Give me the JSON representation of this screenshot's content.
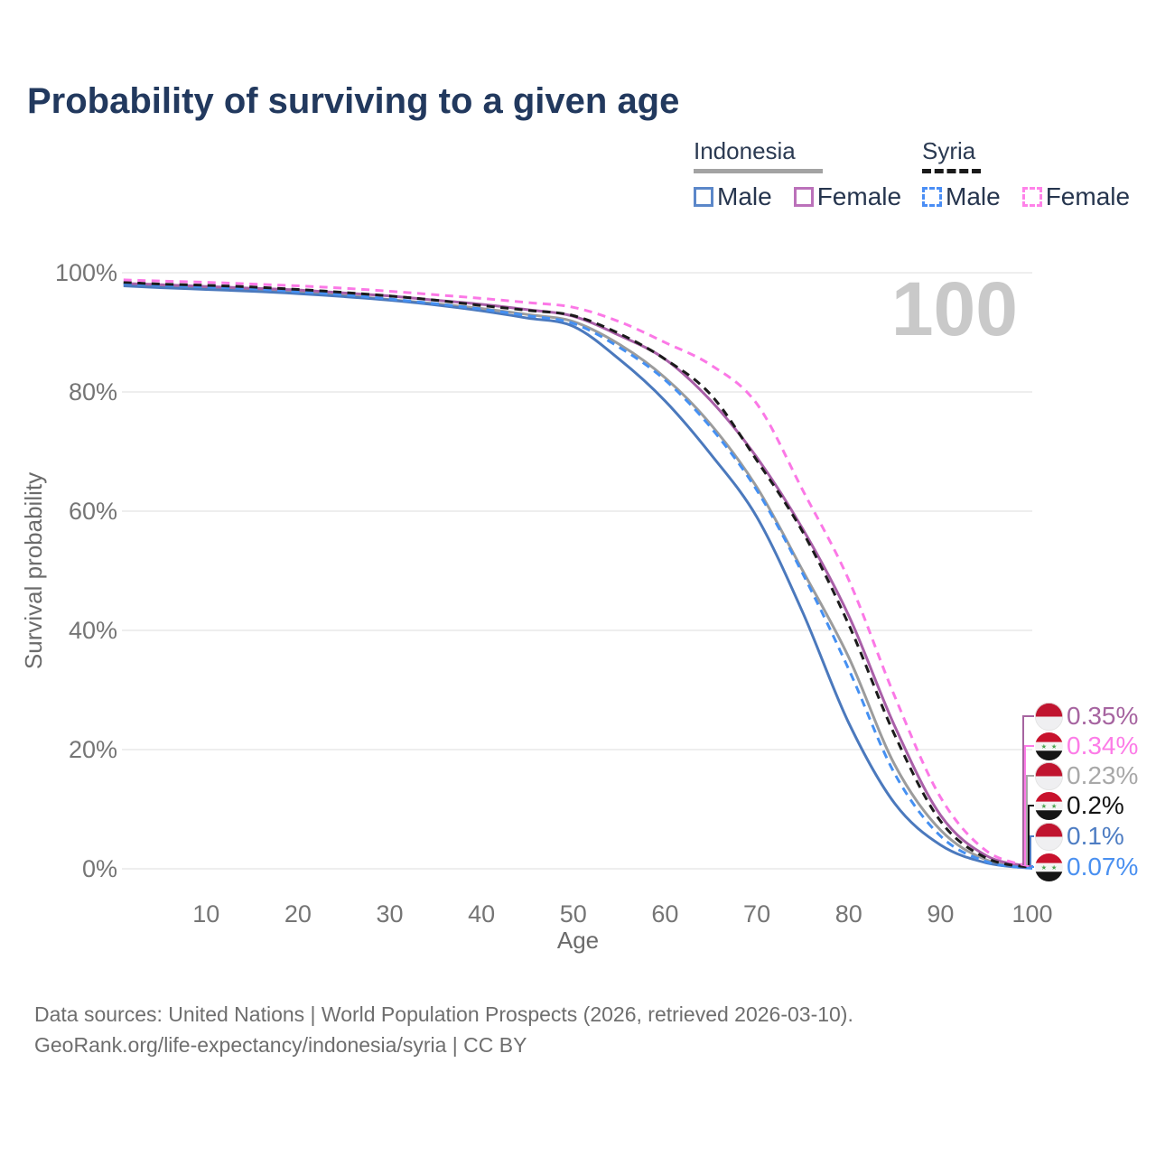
{
  "title": "Probability of surviving to a given age",
  "watermark_age": "100",
  "legend": {
    "groups": [
      {
        "label": "Indonesia",
        "line_style": "solid",
        "underline_color": "#a3a3a3",
        "items": [
          {
            "label": "Male",
            "color": "#5b87c9",
            "dash": false
          },
          {
            "label": "Female",
            "color": "#bb71ba",
            "dash": false
          }
        ]
      },
      {
        "label": "Syria",
        "line_style": "dashed",
        "underline_color": "#1a1a1a",
        "items": [
          {
            "label": "Male",
            "color": "#4a8ef5",
            "dash": true
          },
          {
            "label": "Female",
            "color": "#ff82e9",
            "dash": true
          }
        ]
      }
    ]
  },
  "chart_data": {
    "type": "line",
    "title": "Probability of surviving to a given age",
    "xlabel": "Age",
    "ylabel": "Survival probability",
    "xlim": [
      0,
      100
    ],
    "ylim": [
      0,
      100
    ],
    "grid": "horizontal",
    "x_ticks": {
      "values": [
        10,
        20,
        30,
        40,
        50,
        60,
        70,
        80,
        90,
        100
      ],
      "labels": [
        "10",
        "20",
        "30",
        "40",
        "50",
        "60",
        "70",
        "80",
        "90",
        "100"
      ]
    },
    "y_ticks": {
      "values": [
        100,
        80,
        60,
        40,
        20,
        0
      ],
      "labels": [
        "100%",
        "80%",
        "60%",
        "40%",
        "20%",
        "0%"
      ]
    },
    "x": [
      1,
      5,
      10,
      15,
      20,
      25,
      30,
      35,
      40,
      45,
      50,
      55,
      60,
      65,
      70,
      75,
      80,
      85,
      90,
      95,
      100
    ],
    "series": [
      {
        "key": "indonesia",
        "name": "Indonesia (both sexes)",
        "color": "#9c9c9c",
        "dash": false,
        "values": [
          98.0,
          97.7,
          97.4,
          97.1,
          96.7,
          96.2,
          95.5,
          94.8,
          94.0,
          93.0,
          91.8,
          88.0,
          82.4,
          74.5,
          64.0,
          50.0,
          35.5,
          17.5,
          6.5,
          1.5,
          0.23
        ]
      },
      {
        "key": "indonesia_female",
        "name": "Indonesia Female",
        "color": "#a95fa8",
        "dash": false,
        "values": [
          98.2,
          98.0,
          97.7,
          97.4,
          97.1,
          96.6,
          96.1,
          95.4,
          94.7,
          93.8,
          92.7,
          89.5,
          85.5,
          78.5,
          69.0,
          57.0,
          42.5,
          24.0,
          9.0,
          2.2,
          0.35
        ]
      },
      {
        "key": "indonesia_male",
        "name": "Indonesia Male",
        "color": "#4b79bd",
        "dash": false,
        "values": [
          97.8,
          97.5,
          97.2,
          96.9,
          96.5,
          96.0,
          95.4,
          94.6,
          93.6,
          92.4,
          91.0,
          85.5,
          78.5,
          69.5,
          59.0,
          43.0,
          24.5,
          11.0,
          4.0,
          1.0,
          0.1
        ]
      },
      {
        "key": "syria_male",
        "name": "Syria Male",
        "color": "#4590f2",
        "dash": true,
        "values": [
          98.2,
          97.9,
          97.6,
          97.3,
          96.8,
          96.3,
          95.6,
          94.8,
          93.9,
          92.8,
          91.5,
          87.5,
          82.0,
          74.0,
          63.5,
          49.5,
          33.5,
          16.0,
          5.5,
          1.2,
          0.07
        ]
      },
      {
        "key": "syria",
        "name": "Syria (both sexes)",
        "color": "#1b1b1b",
        "dash": true,
        "values": [
          98.4,
          98.1,
          97.9,
          97.6,
          97.2,
          96.7,
          96.1,
          95.4,
          94.5,
          93.7,
          92.8,
          89.8,
          85.5,
          79.5,
          68.5,
          56.5,
          41.0,
          22.5,
          8.0,
          1.8,
          0.2
        ]
      },
      {
        "key": "syria_female",
        "name": "Syria Female",
        "color": "#fb78e6",
        "dash": true,
        "values": [
          98.8,
          98.6,
          98.4,
          98.1,
          97.8,
          97.4,
          96.9,
          96.3,
          95.7,
          95.0,
          94.2,
          91.8,
          88.3,
          84.5,
          78.0,
          63.5,
          48.5,
          29.0,
          12.0,
          3.0,
          0.34
        ]
      }
    ]
  },
  "end_labels": [
    {
      "value": "0.35%",
      "color": "#a664a0",
      "flag": "indonesia",
      "series": "indonesia_female"
    },
    {
      "value": "0.34%",
      "color": "#fc7ce7",
      "flag": "syria",
      "series": "syria_female"
    },
    {
      "value": "0.23%",
      "color": "#a8a8a8",
      "flag": "indonesia",
      "series": "indonesia"
    },
    {
      "value": "0.2%",
      "color": "#141414",
      "flag": "syria",
      "series": "syria"
    },
    {
      "value": "0.1%",
      "color": "#4e7dc3",
      "flag": "indonesia",
      "series": "indonesia_male"
    },
    {
      "value": "0.07%",
      "color": "#4a90f0",
      "flag": "syria",
      "series": "syria_male"
    }
  ],
  "source": {
    "line1": "Data sources: United Nations | World Population Prospects (2026, retrieved 2026-03-10).",
    "line2": "GeoRank.org/life-expectancy/indonesia/syria | CC BY"
  }
}
